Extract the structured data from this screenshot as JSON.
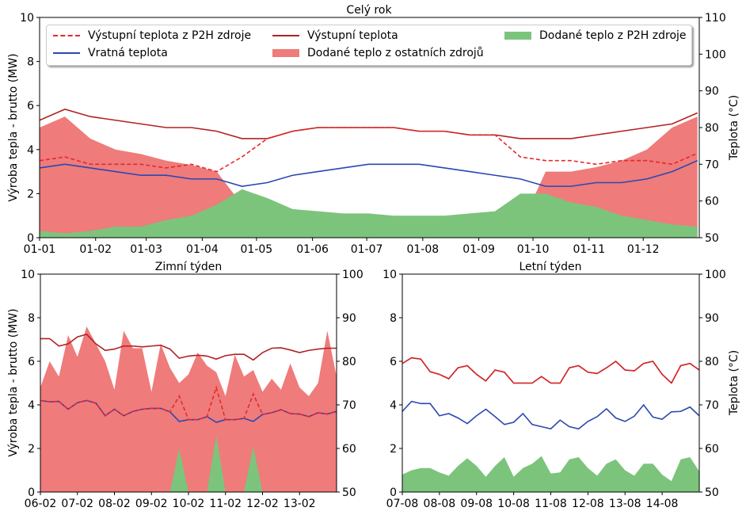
{
  "colors": {
    "output_temp": "#b22222",
    "p2h_output_temp": "#e8282a",
    "return_temp": "#2a48b0",
    "heat_other": "#ef7b7b",
    "heat_p2h": "#7cc47c"
  },
  "legend": [
    {
      "label": "Výstupní teplota z P2H zdroje",
      "style": "dash",
      "color_key": "p2h_output_temp"
    },
    {
      "label": "Vratná teplota",
      "style": "line",
      "color_key": "return_temp"
    },
    {
      "label": "Výstupní teplota",
      "style": "line",
      "color_key": "output_temp"
    },
    {
      "label": "Dodané teplo z ostatních zdrojů",
      "style": "box",
      "color_key": "heat_other"
    },
    {
      "label": "Dodané teplo z P2H zdroje",
      "style": "box",
      "color_key": "heat_p2h"
    }
  ],
  "chart_data": [
    {
      "type": "area+line",
      "title": "Celý rok",
      "ylabel": "Výroba tepla - brutto (MW)",
      "ylabel_right": "Teplota (°C)",
      "ylim": [
        0,
        10
      ],
      "ylim_right": [
        50,
        110
      ],
      "yticks": [
        0,
        2,
        4,
        6,
        8,
        10
      ],
      "yticks_right": [
        50,
        60,
        70,
        80,
        90,
        100,
        110
      ],
      "xticks": [
        "01-01",
        "01-02",
        "01-03",
        "01-04",
        "01-05",
        "01-06",
        "01-07",
        "01-08",
        "01-09",
        "01-10",
        "01-11",
        "01-12"
      ],
      "x": [
        "01-01",
        "15-01",
        "29-01",
        "12-02",
        "26-02",
        "12-03",
        "26-03",
        "09-04",
        "23-04",
        "07-05",
        "21-05",
        "04-06",
        "18-06",
        "02-07",
        "16-07",
        "30-07",
        "13-08",
        "27-08",
        "10-09",
        "24-09",
        "08-10",
        "22-10",
        "05-11",
        "19-11",
        "03-12",
        "17-12",
        "31-12"
      ],
      "series": {
        "heat_other": [
          5,
          5.5,
          4.5,
          4,
          3.8,
          3.5,
          3.3,
          3,
          1.5,
          0.2,
          0,
          0,
          0,
          0,
          0,
          0,
          0,
          0,
          0,
          0.5,
          3,
          3,
          3.2,
          3.5,
          4,
          5,
          5.5
        ],
        "heat_p2h": [
          0.3,
          0.2,
          0.3,
          0.5,
          0.5,
          0.8,
          1,
          1.5,
          2.2,
          1.8,
          1.3,
          1.2,
          1.1,
          1.1,
          1,
          1,
          1,
          1.1,
          1.2,
          2,
          2,
          1.6,
          1.4,
          1,
          0.8,
          0.6,
          0.5
        ],
        "output_temp": [
          82,
          85,
          83,
          82,
          81,
          80,
          80,
          79,
          77,
          77,
          79,
          80,
          80,
          80,
          80,
          79,
          79,
          78,
          78,
          77,
          77,
          77,
          78,
          79,
          80,
          81,
          84
        ],
        "p2h_output_temp": [
          71,
          72,
          70,
          70,
          70,
          69,
          70,
          68,
          72,
          77,
          79,
          80,
          80,
          80,
          80,
          79,
          79,
          78,
          78,
          72,
          71,
          71,
          70,
          71,
          71,
          70,
          73
        ],
        "return_temp": [
          69,
          70,
          69,
          68,
          67,
          67,
          66,
          66,
          64,
          65,
          67,
          68,
          69,
          70,
          70,
          70,
          69,
          68,
          67,
          66,
          64,
          64,
          65,
          65,
          66,
          68,
          71
        ]
      }
    },
    {
      "type": "area+line",
      "title": "Zimní týden",
      "ylabel": "Výroba tepla - brutto (MW)",
      "ylim": [
        0,
        10
      ],
      "ylim_right": [
        50,
        100
      ],
      "yticks": [
        0,
        2,
        4,
        6,
        8,
        10
      ],
      "yticks_right": [
        50,
        60,
        70,
        80,
        90,
        100
      ],
      "xticks": [
        "06-02",
        "07-02",
        "08-02",
        "09-02",
        "10-02",
        "11-02",
        "12-02",
        "13-02"
      ],
      "x_step_hours": 6,
      "series": {
        "heat_other": [
          4.8,
          6.0,
          5.3,
          7.2,
          6.2,
          7.6,
          6.8,
          6.0,
          4.7,
          7.4,
          6.6,
          6.6,
          4.6,
          6.8,
          5.7,
          5.0,
          5.4,
          6.4,
          5.8,
          5.5,
          4.4,
          6.3,
          5.3,
          5.6,
          4.6,
          5.2,
          4.7,
          5.9,
          4.8,
          4.4,
          5.0,
          7.4,
          5.3
        ],
        "heat_p2h": [
          0,
          0,
          0,
          0,
          0,
          0,
          0,
          0,
          0,
          0,
          0,
          0,
          0,
          0,
          0,
          2.0,
          0,
          0,
          0,
          2.6,
          0,
          0,
          0,
          2.1,
          0,
          0,
          0,
          0,
          0,
          0,
          0,
          0,
          0
        ],
        "output_temp": [
          85.2,
          85.2,
          83.5,
          84,
          85.6,
          86.2,
          84,
          82.5,
          82.8,
          83.5,
          83.5,
          83.3,
          83.5,
          83.7,
          82.8,
          80.7,
          81.2,
          81.4,
          81.2,
          80.5,
          81.3,
          81.6,
          81.6,
          80.3,
          82,
          83,
          83.1,
          82.6,
          82,
          82.5,
          82.8,
          83,
          83
        ],
        "p2h_output_temp": [
          71,
          70.7,
          70.8,
          69,
          70.5,
          71,
          70.4,
          67.5,
          69,
          67.5,
          68.5,
          69,
          69.2,
          69.2,
          68.4,
          72,
          66.6,
          66.6,
          67.3,
          74,
          66.6,
          66.6,
          66.9,
          72.5,
          67.8,
          68.2,
          68.9,
          68,
          67.9,
          67.3,
          68.2,
          67.9,
          68.5
        ],
        "return_temp": [
          71,
          70.7,
          70.8,
          69,
          70.5,
          71,
          70.4,
          67.5,
          69,
          67.5,
          68.5,
          69,
          69.2,
          69.2,
          68.4,
          66.2,
          66.6,
          66.6,
          67.3,
          66,
          66.6,
          66.6,
          66.9,
          66.2,
          67.8,
          68.2,
          68.9,
          68,
          67.9,
          67.3,
          68.2,
          67.9,
          68.5
        ]
      }
    },
    {
      "type": "area+line",
      "title": "Letní týden",
      "ylabel_right": "Teplota (°C)",
      "ylim": [
        0,
        10
      ],
      "ylim_right": [
        50,
        100
      ],
      "yticks": [
        0,
        2,
        4,
        6,
        8,
        10
      ],
      "yticks_right": [
        50,
        60,
        70,
        80,
        90,
        100
      ],
      "xticks": [
        "07-08",
        "08-08",
        "09-08",
        "10-08",
        "11-08",
        "12-08",
        "13-08",
        "14-08"
      ],
      "x_step_hours": 6,
      "series": {
        "heat_other": [
          0,
          0,
          0,
          0,
          0,
          0,
          0,
          0,
          0,
          0,
          0,
          0,
          0,
          0,
          0,
          0,
          0,
          0,
          0,
          0,
          0,
          0,
          0,
          0,
          0,
          0,
          0,
          0,
          0,
          0,
          0,
          0,
          0
        ],
        "heat_p2h": [
          0.8,
          1.0,
          1.1,
          1.1,
          0.9,
          0.75,
          1.2,
          1.55,
          1.2,
          0.7,
          1.2,
          1.6,
          0.7,
          1.1,
          1.3,
          1.65,
          0.85,
          0.9,
          1.5,
          1.6,
          1.1,
          0.75,
          1.3,
          1.5,
          1.0,
          0.75,
          1.3,
          1.3,
          0.8,
          0.5,
          1.5,
          1.6,
          0.95
        ],
        "output_temp": [
          79.5,
          80.8,
          80.5,
          77.6,
          77,
          76,
          78.5,
          79,
          77,
          75.5,
          78,
          77.5,
          75,
          75,
          75,
          76.5,
          75,
          75,
          78.5,
          79,
          77.5,
          77.2,
          78.5,
          80,
          78,
          77.8,
          79.5,
          80,
          77,
          75,
          79,
          79.5,
          78
        ],
        "p2h_output_temp": [
          79.5,
          80.8,
          80.5,
          77.6,
          77,
          76,
          78.5,
          79,
          77,
          75.5,
          78,
          77.5,
          75,
          75,
          75,
          76.5,
          75,
          75,
          78.5,
          79,
          77.5,
          77.2,
          78.5,
          80,
          78,
          77.8,
          79.5,
          80,
          77,
          75,
          79,
          79.5,
          78
        ],
        "return_temp": [
          68.5,
          70.8,
          70.3,
          70.3,
          67.5,
          68,
          67,
          65.7,
          67.5,
          69,
          67.3,
          65.5,
          66,
          68,
          65.5,
          65,
          64.5,
          66.5,
          65,
          64.5,
          66.2,
          67.3,
          69.1,
          67,
          66.2,
          67.4,
          70,
          67.2,
          66.7,
          68.4,
          68.5,
          69.5,
          67.5
        ]
      }
    }
  ]
}
